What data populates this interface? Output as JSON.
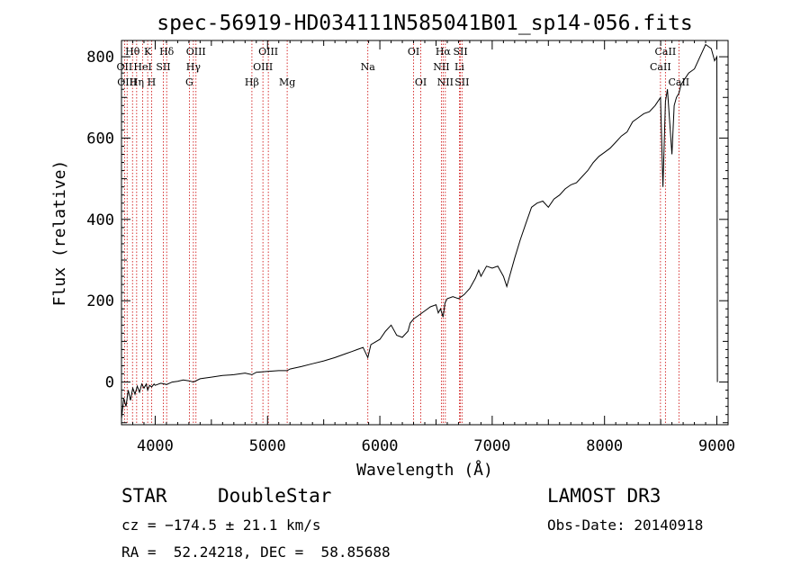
{
  "chart_data": {
    "type": "line",
    "title": "spec-56919-HD034111N585041B01_sp14-056.fits",
    "xlabel": "Wavelength (Å)",
    "ylabel": "Flux (relative)",
    "xlim": [
      3700,
      9100
    ],
    "ylim": [
      -105,
      840
    ],
    "xticks": [
      4000,
      5000,
      6000,
      7000,
      8000,
      9000
    ],
    "yticks": [
      0,
      200,
      400,
      600,
      800
    ],
    "series": [
      {
        "name": "flux",
        "x": [
          3700,
          3720,
          3740,
          3760,
          3780,
          3800,
          3820,
          3840,
          3860,
          3880,
          3900,
          3920,
          3933,
          3950,
          3968,
          3990,
          4000,
          4050,
          4101,
          4150,
          4200,
          4250,
          4300,
          4340,
          4400,
          4500,
          4600,
          4700,
          4800,
          4861,
          4900,
          5000,
          5100,
          5175,
          5200,
          5300,
          5400,
          5500,
          5600,
          5700,
          5750,
          5800,
          5850,
          5893,
          5920,
          6000,
          6050,
          6100,
          6150,
          6200,
          6250,
          6270,
          6300,
          6350,
          6400,
          6450,
          6500,
          6520,
          6540,
          6563,
          6580,
          6600,
          6650,
          6700,
          6750,
          6800,
          6850,
          6880,
          6900,
          6950,
          7000,
          7050,
          7100,
          7130,
          7150,
          7200,
          7250,
          7300,
          7350,
          7400,
          7450,
          7500,
          7550,
          7600,
          7650,
          7700,
          7750,
          7800,
          7850,
          7900,
          7950,
          8000,
          8050,
          8100,
          8150,
          8200,
          8250,
          8300,
          8350,
          8400,
          8450,
          8498,
          8520,
          8542,
          8560,
          8600,
          8620,
          8640,
          8662,
          8680,
          8700,
          8750,
          8800,
          8850,
          8900,
          8950,
          8980,
          9000,
          9005
        ],
        "values": [
          -90,
          -40,
          -60,
          -20,
          -45,
          -15,
          -30,
          -10,
          -25,
          -5,
          -15,
          -5,
          -20,
          -8,
          -12,
          -5,
          -8,
          -3,
          -6,
          0,
          2,
          5,
          3,
          0,
          8,
          12,
          16,
          18,
          22,
          18,
          24,
          26,
          28,
          28,
          32,
          38,
          45,
          52,
          60,
          70,
          75,
          80,
          85,
          60,
          92,
          105,
          125,
          140,
          115,
          110,
          125,
          145,
          155,
          165,
          175,
          185,
          190,
          170,
          180,
          160,
          195,
          205,
          210,
          205,
          215,
          230,
          255,
          275,
          260,
          285,
          280,
          285,
          260,
          235,
          255,
          305,
          350,
          390,
          430,
          440,
          445,
          430,
          450,
          460,
          475,
          485,
          490,
          505,
          520,
          540,
          555,
          565,
          575,
          590,
          605,
          615,
          640,
          650,
          660,
          665,
          680,
          700,
          480,
          690,
          720,
          560,
          680,
          700,
          710,
          730,
          740,
          760,
          770,
          800,
          830,
          820,
          790,
          800,
          0
        ]
      }
    ],
    "line_labels": [
      {
        "name": "Hθ",
        "x": 3798,
        "row": 1
      },
      {
        "name": "OII",
        "x": 3727,
        "row": 2
      },
      {
        "name": "OIII",
        "x": 3750,
        "row": 3
      },
      {
        "name": "K",
        "x": 3933,
        "row": 1
      },
      {
        "name": "HeI",
        "x": 3889,
        "row": 2
      },
      {
        "name": "Hη",
        "x": 3835,
        "row": 3
      },
      {
        "name": "Hδ",
        "x": 4102,
        "row": 1
      },
      {
        "name": "SII",
        "x": 4072,
        "row": 2
      },
      {
        "name": "H",
        "x": 3968,
        "row": 3
      },
      {
        "name": "OIII",
        "x": 4363,
        "row": 1
      },
      {
        "name": "Hγ",
        "x": 4340,
        "row": 2
      },
      {
        "name": "G",
        "x": 4304,
        "row": 3
      },
      {
        "name": "OIII",
        "x": 5007,
        "row": 1
      },
      {
        "name": "OIII",
        "x": 4959,
        "row": 2
      },
      {
        "name": "Hβ",
        "x": 4861,
        "row": 3
      },
      {
        "name": "Mg",
        "x": 5175,
        "row": 3
      },
      {
        "name": "Na",
        "x": 5893,
        "row": 2
      },
      {
        "name": "OI",
        "x": 6300,
        "row": 1
      },
      {
        "name": "OI",
        "x": 6364,
        "row": 3
      },
      {
        "name": "Hα",
        "x": 6563,
        "row": 1
      },
      {
        "name": "SII",
        "x": 6717,
        "row": 1
      },
      {
        "name": "NII",
        "x": 6548,
        "row": 2
      },
      {
        "name": "Li",
        "x": 6708,
        "row": 2
      },
      {
        "name": "NII",
        "x": 6583,
        "row": 3
      },
      {
        "name": "SII",
        "x": 6731,
        "row": 3
      },
      {
        "name": "CaII",
        "x": 8542,
        "row": 1
      },
      {
        "name": "CaII",
        "x": 8498,
        "row": 2
      },
      {
        "name": "CaII",
        "x": 8662,
        "row": 3
      }
    ]
  },
  "info": {
    "class_label": "STAR",
    "subclass": "DoubleStar",
    "survey": "LAMOST DR3",
    "cz": "cz = −174.5 ± 21.1 km/s",
    "obs_date": "Obs-Date: 20140918",
    "coords": "RA =  52.24218, DEC =  58.85688"
  },
  "colors": {
    "line_marker": "#cc0000",
    "spectrum": "#000000",
    "axes": "#000000"
  }
}
